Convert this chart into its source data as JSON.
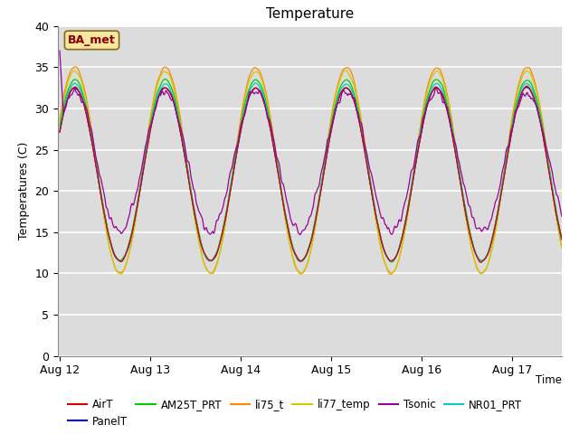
{
  "title": "Temperature",
  "xlabel": "Time",
  "ylabel": "Temperatures (C)",
  "ylim": [
    0,
    40
  ],
  "yticks": [
    0,
    5,
    10,
    15,
    20,
    25,
    30,
    35,
    40
  ],
  "xtick_labels": [
    "Aug 12",
    "Aug 13",
    "Aug 14",
    "Aug 15",
    "Aug 16",
    "Aug 17"
  ],
  "annotation": "BA_met",
  "background_color": "#e8e8e8",
  "plot_bg": "#dcdcdc",
  "series_colors": {
    "AirT": "#dd0000",
    "PanelT": "#0000bb",
    "AM25T_PRT": "#00cc00",
    "li75_t": "#ff8800",
    "li77_temp": "#cccc00",
    "Tsonic": "#990099",
    "NR01_PRT": "#00cccc"
  }
}
